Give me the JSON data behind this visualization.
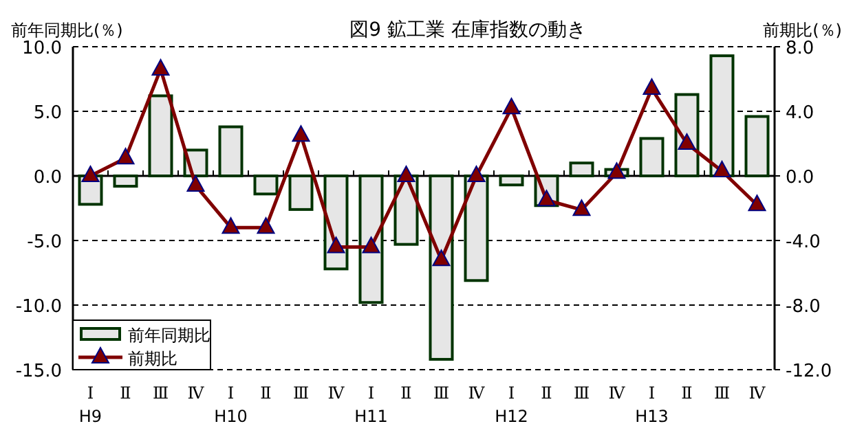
{
  "chart_data": {
    "type": "bar",
    "title": "図9  鉱工業  在庫指数の動き",
    "ylabel": "前年同期比(％)",
    "y2label": "前期比(％)",
    "categories": [
      "Ⅰ\nH9",
      "Ⅱ",
      "Ⅲ",
      "Ⅳ",
      "Ⅰ\nH10",
      "Ⅱ",
      "Ⅲ",
      "Ⅳ",
      "Ⅰ\nH11",
      "Ⅱ",
      "Ⅲ",
      "Ⅳ",
      "Ⅰ\nH12",
      "Ⅱ",
      "Ⅲ",
      "Ⅳ",
      "Ⅰ\nH13",
      "Ⅱ",
      "Ⅲ",
      "Ⅳ"
    ],
    "series": [
      {
        "name": "前年同期比",
        "color": "#e6e6e6",
        "values": [
          -2.2,
          -0.8,
          6.2,
          2.0,
          3.8,
          -1.4,
          -2.6,
          -7.2,
          -9.8,
          -5.3,
          -14.2,
          -8.1,
          -0.7,
          -2.3,
          1.0,
          0.5,
          2.9,
          6.3,
          9.3,
          4.6
        ]
      },
      {
        "name": "前期比",
        "type": "line",
        "axis": "y2",
        "color": "#800000",
        "marker": "triangle",
        "values": [
          0.0,
          1.1,
          6.6,
          -0.6,
          -3.2,
          -3.2,
          2.5,
          -4.4,
          -4.4,
          0.0,
          -5.2,
          0.0,
          4.2,
          -1.5,
          -2.1,
          0.2,
          5.4,
          2.0,
          0.3,
          -1.8
        ]
      }
    ],
    "ylim": [
      -15,
      10
    ],
    "yticks": [
      {
        "value": -15,
        "label": "-15.0"
      },
      {
        "value": -10,
        "label": "-10.0"
      },
      {
        "value": -5,
        "label": "-5.0"
      },
      {
        "value": 0,
        "label": "0.0"
      },
      {
        "value": 5,
        "label": "5.0"
      },
      {
        "value": 10,
        "label": "10.0"
      }
    ],
    "y2lim": [
      -12,
      8
    ],
    "y2ticks": [
      {
        "value": -12,
        "label": "-12.0"
      },
      {
        "value": -8,
        "label": "-8.0"
      },
      {
        "value": -4,
        "label": "-4.0"
      },
      {
        "value": 0,
        "label": "0.0"
      },
      {
        "value": 4,
        "label": "4.0"
      },
      {
        "value": 8,
        "label": "8.0"
      }
    ],
    "grid": "y",
    "legend": "bottom left"
  }
}
